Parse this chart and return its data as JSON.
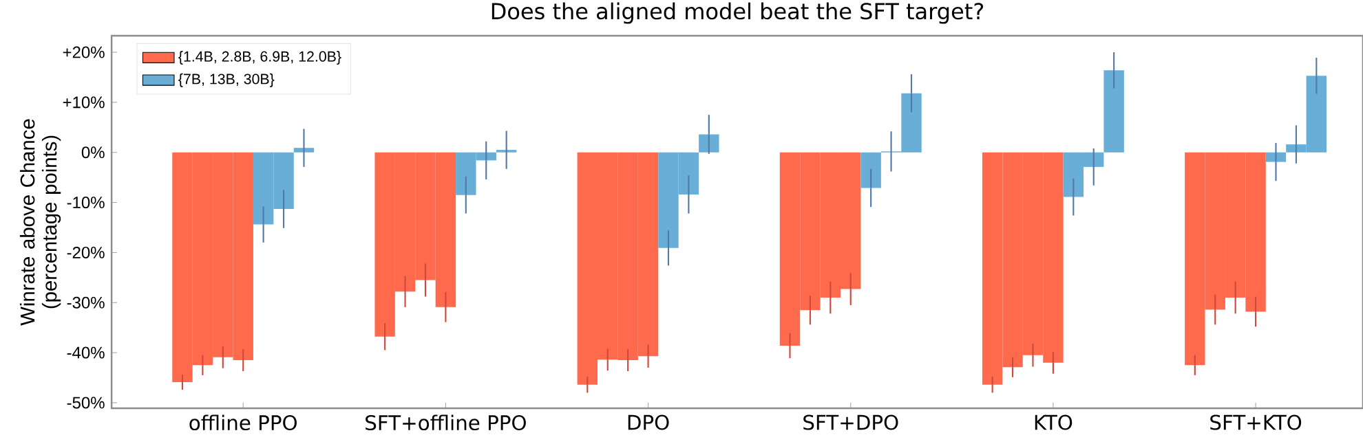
{
  "chart_data": {
    "type": "bar",
    "title": "Does the aligned model beat the SFT target?",
    "ylabel": "Winrate above Chance (percentage points)",
    "categories": [
      "offline PPO",
      "SFT+offline PPO",
      "DPO",
      "SFT+DPO",
      "KTO",
      "SFT+KTO"
    ],
    "ylim": [
      -51.1,
      23.3
    ],
    "yticks": [
      {
        "value": -50,
        "label": "-50%"
      },
      {
        "value": -40,
        "label": "-40%"
      },
      {
        "value": -30,
        "label": "-30%"
      },
      {
        "value": -20,
        "label": "-20%"
      },
      {
        "value": -10,
        "label": "-10%"
      },
      {
        "value": 0,
        "label": "0%"
      },
      {
        "value": 10,
        "label": "+10%"
      },
      {
        "value": 20,
        "label": "+20%"
      }
    ],
    "legend": "top left",
    "series": [
      {
        "name": "{1.4B, 2.8B, 6.9B, 12.0B}",
        "color": "#ff6a4d",
        "values": [
          -45.9,
          -36.8,
          -46.4,
          -38.6,
          -46.4,
          -42.5
        ],
        "errors": [
          1.5,
          2.7,
          1.6,
          2.5,
          1.6,
          2.0
        ]
      },
      {
        "color": "#ff6a4d",
        "values": [
          -42.5,
          -27.8,
          -41.4,
          -31.5,
          -42.9,
          -31.4
        ],
        "errors": [
          2.0,
          3.1,
          2.2,
          2.9,
          2.0,
          3.0
        ]
      },
      {
        "color": "#ff6a4d",
        "values": [
          -40.9,
          -25.5,
          -41.5,
          -29.0,
          -40.5,
          -29.0
        ],
        "errors": [
          2.2,
          3.3,
          2.2,
          3.2,
          2.3,
          3.2
        ]
      },
      {
        "color": "#ff6a4d",
        "values": [
          -41.5,
          -30.9,
          -40.7,
          -27.3,
          -42.0,
          -31.8
        ],
        "errors": [
          2.2,
          3.0,
          2.3,
          3.2,
          2.2,
          3.0
        ]
      },
      {
        "name": "{7B, 13B, 30B}",
        "color": "#68aed6",
        "values": [
          -14.4,
          -8.5,
          -19.1,
          -7.1,
          -8.9,
          -1.9
        ],
        "errors": [
          3.6,
          3.7,
          3.5,
          3.8,
          3.7,
          3.8
        ]
      },
      {
        "color": "#68aed6",
        "values": [
          -11.3,
          -1.6,
          -8.4,
          0.2,
          -2.9,
          1.6
        ],
        "errors": [
          3.8,
          3.8,
          3.8,
          4.0,
          3.7,
          3.8
        ]
      },
      {
        "color": "#68aed6",
        "values": [
          0.9,
          0.5,
          3.6,
          11.8,
          16.4,
          15.3
        ],
        "errors": [
          3.8,
          3.8,
          3.9,
          3.8,
          3.6,
          3.6
        ]
      }
    ]
  }
}
